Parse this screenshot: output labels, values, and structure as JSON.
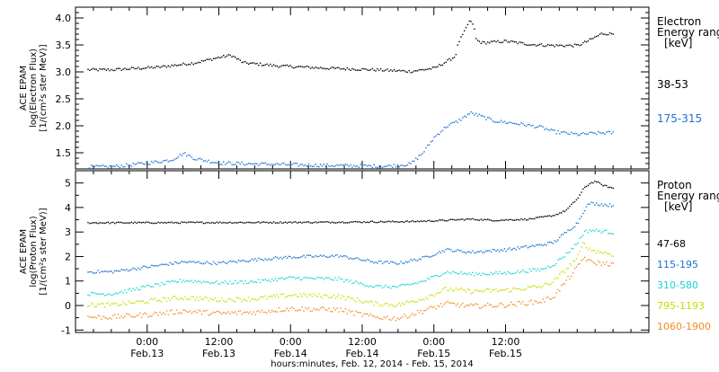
{
  "chart_data": [
    {
      "type": "scatter",
      "panel": "electron",
      "ylabel_lines": [
        "ACE EPAM",
        "log(Electron Flux)",
        "[1/(cm²s ster MeV)]"
      ],
      "ylim": [
        1.2,
        4.2
      ],
      "yticks": [
        {
          "v": 1.5,
          "label": "1.5"
        },
        {
          "v": 2.0,
          "label": "2.0"
        },
        {
          "v": 2.5,
          "label": "2.5"
        },
        {
          "v": 3.0,
          "label": "3.0"
        },
        {
          "v": 3.5,
          "label": "3.5"
        },
        {
          "v": 4.0,
          "label": "4.0"
        }
      ],
      "yminor": [
        1.3,
        1.4,
        1.6,
        1.7,
        1.8,
        1.9,
        2.1,
        2.2,
        2.3,
        2.4,
        2.6,
        2.7,
        2.8,
        2.9,
        3.1,
        3.2,
        3.3,
        3.4,
        3.6,
        3.7,
        3.8,
        3.9,
        4.1
      ],
      "legend_title_lines": [
        "Electron",
        "Energy ranges",
        "[keV]"
      ],
      "series": [
        {
          "name": "38-53",
          "color": "#000000",
          "noise": 0.025,
          "points": [
            [
              6,
              3.05
            ],
            [
              14,
              3.1
            ],
            [
              20,
              3.18
            ],
            [
              24,
              3.28
            ],
            [
              26,
              3.32
            ],
            [
              28,
              3.18
            ],
            [
              34,
              3.12
            ],
            [
              42,
              3.08
            ],
            [
              50,
              3.05
            ],
            [
              56,
              3.02
            ],
            [
              60,
              3.08
            ],
            [
              62,
              3.2
            ],
            [
              63.5,
              3.3
            ],
            [
              64,
              3.55
            ],
            [
              65,
              3.75
            ],
            [
              65.8,
              3.95
            ],
            [
              66.5,
              3.9
            ],
            [
              67,
              3.6
            ],
            [
              68,
              3.55
            ],
            [
              72,
              3.58
            ],
            [
              76,
              3.52
            ],
            [
              80,
              3.5
            ],
            [
              84,
              3.5
            ],
            [
              86,
              3.6
            ],
            [
              88,
              3.72
            ],
            [
              90,
              3.72
            ]
          ]
        },
        {
          "name": "175-315",
          "color": "#1f6fd0",
          "noise": 0.03,
          "points": [
            [
              6,
              1.25
            ],
            [
              12,
              1.32
            ],
            [
              16,
              1.38
            ],
            [
              18,
              1.5
            ],
            [
              20,
              1.4
            ],
            [
              24,
              1.32
            ],
            [
              32,
              1.3
            ],
            [
              40,
              1.28
            ],
            [
              52,
              1.26
            ],
            [
              56,
              1.3
            ],
            [
              58,
              1.5
            ],
            [
              60,
              1.8
            ],
            [
              62,
              2.0
            ],
            [
              64,
              2.1
            ],
            [
              66,
              2.25
            ],
            [
              67.5,
              2.2
            ],
            [
              70,
              2.1
            ],
            [
              74,
              2.05
            ],
            [
              78,
              1.98
            ],
            [
              80,
              1.9
            ],
            [
              84,
              1.85
            ],
            [
              88,
              1.88
            ],
            [
              90,
              1.88
            ]
          ]
        }
      ]
    },
    {
      "type": "scatter",
      "panel": "proton",
      "ylabel_lines": [
        "ACE EPAM",
        "log(Proton Flux)",
        "[1/(cm²s ster MeV)]"
      ],
      "ylim": [
        -1.1,
        5.5
      ],
      "yticks": [
        {
          "v": -1,
          "label": "-1"
        },
        {
          "v": 0,
          "label": "0"
        },
        {
          "v": 1,
          "label": "1"
        },
        {
          "v": 2,
          "label": "2"
        },
        {
          "v": 3,
          "label": "3"
        },
        {
          "v": 4,
          "label": "4"
        },
        {
          "v": 5,
          "label": "5"
        }
      ],
      "yminor": [
        -0.5,
        0.5,
        1.5,
        2.5,
        3.5,
        4.5
      ],
      "legend_title_lines": [
        "Proton",
        "Energy ranges",
        "[keV]"
      ],
      "series": [
        {
          "name": "47-68",
          "color": "#000000",
          "noise": 0.03,
          "points": [
            [
              6,
              3.4
            ],
            [
              40,
              3.42
            ],
            [
              56,
              3.45
            ],
            [
              62,
              3.5
            ],
            [
              66,
              3.55
            ],
            [
              70,
              3.5
            ],
            [
              76,
              3.55
            ],
            [
              80,
              3.7
            ],
            [
              82,
              3.9
            ],
            [
              84,
              4.4
            ],
            [
              85,
              4.8
            ],
            [
              86,
              5.0
            ],
            [
              87,
              5.1
            ],
            [
              88,
              4.95
            ],
            [
              90,
              4.8
            ]
          ]
        },
        {
          "name": "115-195",
          "color": "#1f6fd0",
          "noise": 0.06,
          "points": [
            [
              6,
              1.4
            ],
            [
              12,
              1.6
            ],
            [
              18,
              1.8
            ],
            [
              24,
              1.75
            ],
            [
              30,
              1.9
            ],
            [
              36,
              2.0
            ],
            [
              44,
              2.05
            ],
            [
              50,
              1.8
            ],
            [
              54,
              1.75
            ],
            [
              58,
              1.95
            ],
            [
              62,
              2.3
            ],
            [
              66,
              2.2
            ],
            [
              72,
              2.3
            ],
            [
              78,
              2.5
            ],
            [
              80,
              2.6
            ],
            [
              82,
              3.0
            ],
            [
              84,
              3.4
            ],
            [
              85,
              3.9
            ],
            [
              86,
              4.2
            ],
            [
              88,
              4.15
            ],
            [
              90,
              4.1
            ]
          ]
        },
        {
          "name": "310-580",
          "color": "#19d2d2",
          "noise": 0.07,
          "points": [
            [
              6,
              0.5
            ],
            [
              12,
              0.8
            ],
            [
              18,
              1.05
            ],
            [
              24,
              0.95
            ],
            [
              30,
              1.0
            ],
            [
              36,
              1.15
            ],
            [
              44,
              1.1
            ],
            [
              50,
              0.8
            ],
            [
              54,
              0.78
            ],
            [
              58,
              1.0
            ],
            [
              62,
              1.4
            ],
            [
              66,
              1.3
            ],
            [
              72,
              1.35
            ],
            [
              78,
              1.5
            ],
            [
              80,
              1.7
            ],
            [
              82,
              2.1
            ],
            [
              84,
              2.6
            ],
            [
              85,
              3.0
            ],
            [
              86,
              3.1
            ],
            [
              88,
              3.05
            ],
            [
              90,
              3.0
            ]
          ]
        },
        {
          "name": "795-1193",
          "color": "#c8dc00",
          "noise": 0.09,
          "points": [
            [
              6,
              0.05
            ],
            [
              12,
              0.2
            ],
            [
              18,
              0.35
            ],
            [
              24,
              0.25
            ],
            [
              30,
              0.3
            ],
            [
              36,
              0.45
            ],
            [
              44,
              0.4
            ],
            [
              50,
              0.1
            ],
            [
              54,
              0.05
            ],
            [
              58,
              0.3
            ],
            [
              62,
              0.7
            ],
            [
              66,
              0.6
            ],
            [
              72,
              0.65
            ],
            [
              78,
              0.8
            ],
            [
              80,
              1.0
            ],
            [
              82,
              1.5
            ],
            [
              84,
              2.0
            ],
            [
              85,
              2.6
            ],
            [
              86,
              2.3
            ],
            [
              88,
              2.2
            ],
            [
              90,
              2.1
            ]
          ]
        },
        {
          "name": "1060-1900",
          "color": "#f08c1e",
          "noise": 0.1,
          "points": [
            [
              6,
              -0.45
            ],
            [
              12,
              -0.35
            ],
            [
              18,
              -0.2
            ],
            [
              24,
              -0.3
            ],
            [
              30,
              -0.25
            ],
            [
              36,
              -0.1
            ],
            [
              44,
              -0.15
            ],
            [
              50,
              -0.45
            ],
            [
              54,
              -0.5
            ],
            [
              58,
              -0.2
            ],
            [
              62,
              0.1
            ],
            [
              66,
              0.0
            ],
            [
              72,
              0.05
            ],
            [
              78,
              0.2
            ],
            [
              80,
              0.4
            ],
            [
              82,
              1.0
            ],
            [
              84,
              1.6
            ],
            [
              85,
              2.0
            ],
            [
              86,
              1.8
            ],
            [
              88,
              1.75
            ],
            [
              90,
              1.7
            ]
          ]
        }
      ]
    }
  ],
  "x_axis": {
    "range_hours": [
      0,
      96
    ],
    "major_ticks": [
      {
        "h": 12,
        "time": "0:00",
        "date": "Feb.13"
      },
      {
        "h": 24,
        "time": "12:00",
        "date": "Feb.13"
      },
      {
        "h": 36,
        "time": "0:00",
        "date": "Feb.14"
      },
      {
        "h": 48,
        "time": "12:00",
        "date": "Feb.14"
      },
      {
        "h": 60,
        "time": "0:00",
        "date": "Feb.15"
      },
      {
        "h": 72,
        "time": "12:00",
        "date": "Feb.15"
      }
    ],
    "minor_step_hours": 3,
    "label": "hours:minutes, Feb. 12, 2014 - Feb. 15, 2014"
  }
}
